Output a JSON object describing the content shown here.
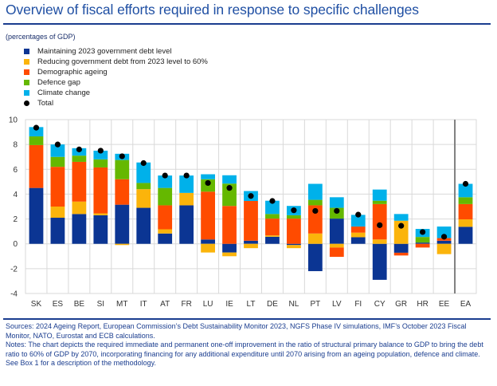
{
  "title": "Overview of fiscal efforts required in response to specific challenges",
  "subtitle": "(percentages of GDP)",
  "legend": [
    {
      "key": "maintain",
      "label": "Maintaining 2023 government debt level",
      "color": "#0b3593",
      "shape": "square"
    },
    {
      "key": "reduce",
      "label": "Reducing government debt from 2023 level to 60%",
      "color": "#fbb40b",
      "shape": "square"
    },
    {
      "key": "ageing",
      "label": "Demographic ageing",
      "color": "#ff4b00",
      "shape": "square"
    },
    {
      "key": "defence",
      "label": "Defence gap",
      "color": "#65b800",
      "shape": "square"
    },
    {
      "key": "climate",
      "label": "Climate change",
      "color": "#00b1ea",
      "shape": "square"
    },
    {
      "key": "total",
      "label": "Total",
      "color": "#000000",
      "shape": "dot"
    }
  ],
  "chart_data": {
    "type": "bar",
    "stacked": true,
    "title": "Overview of fiscal efforts required in response to specific challenges",
    "ylabel": "percentages of GDP",
    "xlabel": "",
    "ylim": [
      -4,
      10
    ],
    "yticks": [
      -4,
      -2,
      0,
      2,
      4,
      6,
      8,
      10
    ],
    "grid": true,
    "legend_position": "top-left",
    "categories": [
      "SK",
      "ES",
      "BE",
      "SI",
      "MT",
      "IT",
      "AT",
      "FR",
      "LU",
      "IE",
      "LT",
      "DE",
      "NL",
      "PT",
      "LV",
      "FI",
      "CY",
      "GR",
      "HR",
      "EE",
      "EA"
    ],
    "series": [
      {
        "name": "Maintaining 2023 government debt level",
        "color": "#0b3593",
        "values": [
          4.5,
          2.1,
          2.4,
          2.3,
          3.15,
          2.9,
          0.83,
          3.1,
          0.35,
          -0.7,
          0.25,
          0.57,
          -0.1,
          -2.2,
          2.03,
          0.53,
          -2.9,
          -0.72,
          0.1,
          0.25,
          1.37
        ]
      },
      {
        "name": "Reducing government debt from 2023 level to 60%",
        "color": "#fbb40b",
        "values": [
          0,
          0.9,
          1.0,
          0.15,
          -0.1,
          1.5,
          0.34,
          1.0,
          -0.7,
          -0.3,
          -0.35,
          0.11,
          -0.25,
          0.83,
          -0.3,
          0.37,
          0.35,
          1.86,
          0,
          -0.83,
          0.6
        ]
      },
      {
        "name": "Demographic ageing",
        "color": "#ff4b00",
        "values": [
          3.45,
          3.2,
          3.2,
          3.7,
          2.05,
          0,
          1.93,
          0,
          3.85,
          3.05,
          3.2,
          1.35,
          2.03,
          2.27,
          -0.75,
          0.49,
          2.85,
          -0.22,
          -0.3,
          0.21,
          1.23
        ]
      },
      {
        "name": "Defence gap",
        "color": "#65b800",
        "values": [
          0.7,
          0.8,
          0.5,
          0.65,
          1.55,
          0.5,
          1.4,
          0,
          1.0,
          1.8,
          0,
          0.37,
          0.27,
          0.44,
          0.87,
          0,
          0.27,
          0,
          0.45,
          0,
          0.55
        ]
      },
      {
        "name": "Climate change",
        "color": "#00b1ea",
        "values": [
          0.75,
          1.0,
          0.6,
          0.7,
          0.5,
          1.65,
          1.0,
          1.4,
          0.4,
          0.67,
          0.8,
          1.07,
          0.75,
          1.29,
          0.85,
          0.94,
          0.9,
          0.54,
          0.65,
          0.93,
          1.08
        ]
      }
    ],
    "total": {
      "name": "Total",
      "color": "#000000",
      "values": [
        9.35,
        8.0,
        7.6,
        7.5,
        7.05,
        6.5,
        5.5,
        5.5,
        4.9,
        4.5,
        3.85,
        3.45,
        2.7,
        2.65,
        2.65,
        2.35,
        1.5,
        1.45,
        0.95,
        0.57,
        4.83
      ]
    },
    "separator_before": "EA"
  },
  "footer": {
    "sources": "Sources: 2024 Ageing Report, European Commission’s Debt Sustainability Monitor 2023, NGFS Phase IV simulations, IMF’s October 2023 Fiscal Monitor, NATO, Eurostat and ECB calculations.",
    "notes": "Notes: The chart depicts the required immediate and permanent one-off improvement in the ratio of structural primary balance to GDP to bring the debt ratio to 60% of GDP by 2070, incorporating financing for any additional expenditure until 2070 arising from an ageing population, defence and climate. See Box 1 for a description of the methodology."
  }
}
